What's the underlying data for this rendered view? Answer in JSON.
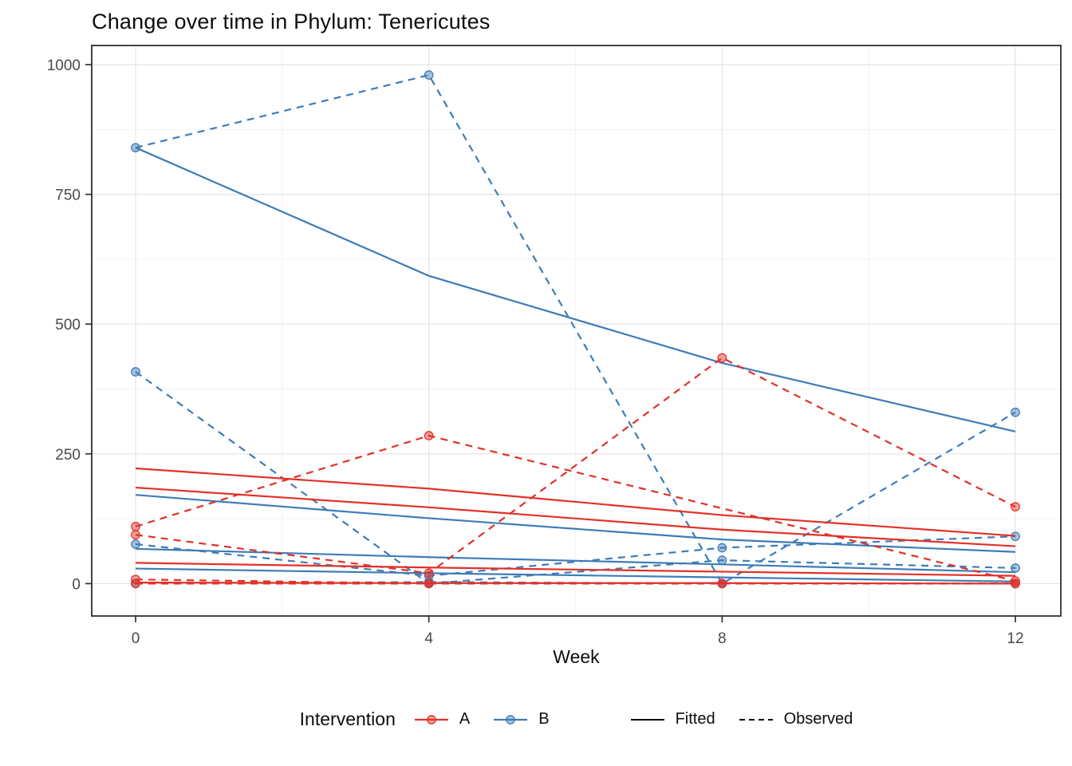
{
  "title": "Change over time in Phylum: Tenericutes",
  "colors": {
    "group_A": "#e23128",
    "group_B": "#3e7cb7",
    "legend_key_black": "#000000",
    "grid_major": "#e4e4e4",
    "grid_minor": "#f1f1f1",
    "panel_border": "#2f2f2f",
    "axis_text": "#4a4a4a",
    "tick_mark": "#333333"
  },
  "x_axis": {
    "label": "Week",
    "ticks": [
      0,
      4,
      8,
      12
    ],
    "minor_ticks": [
      2,
      6,
      10
    ]
  },
  "y_axis": {
    "ticks": [
      0,
      250,
      500,
      750,
      1000
    ],
    "minor_ticks": [
      125,
      375,
      625,
      875
    ]
  },
  "legend": {
    "title": "Intervention",
    "groups": [
      {
        "label": "A",
        "color": "#e23128"
      },
      {
        "label": "B",
        "color": "#3e7cb7"
      }
    ],
    "linetypes": [
      {
        "label": "Fitted",
        "style": "solid"
      },
      {
        "label": "Observed",
        "style": "dashed"
      }
    ]
  },
  "chart_data": {
    "type": "line",
    "title": "Change over time in Phylum: Tenericutes",
    "xlabel": "Week",
    "ylabel": "",
    "x_ticks": [
      0,
      4,
      8,
      12
    ],
    "ylim": [
      0,
      1000
    ],
    "grid": true,
    "legend_position": "bottom",
    "series": [
      {
        "id": "B1",
        "group": "B",
        "observed": [
          [
            0,
            840
          ],
          [
            4,
            980
          ],
          [
            8,
            0
          ],
          [
            12,
            330
          ]
        ],
        "fitted": [
          [
            0,
            840
          ],
          [
            4,
            593
          ],
          [
            8,
            425
          ],
          [
            12,
            293
          ]
        ]
      },
      {
        "id": "B2",
        "group": "B",
        "observed": [
          [
            0,
            408
          ],
          [
            4,
            0
          ],
          [
            8,
            45
          ],
          [
            12,
            30
          ]
        ],
        "fitted": [
          [
            0,
            171
          ],
          [
            4,
            126
          ],
          [
            8,
            85
          ],
          [
            12,
            61
          ]
        ]
      },
      {
        "id": "B3",
        "group": "B",
        "observed": [
          [
            0,
            76
          ],
          [
            4,
            15
          ],
          [
            8,
            69
          ],
          [
            12,
            91
          ]
        ],
        "fitted": [
          [
            0,
            67
          ],
          [
            4,
            51
          ],
          [
            8,
            37
          ],
          [
            12,
            22
          ]
        ]
      },
      {
        "id": "B4",
        "group": "B",
        "observed": [
          [
            0,
            0
          ],
          [
            4,
            3
          ],
          [
            8,
            0
          ],
          [
            12,
            0
          ]
        ],
        "fitted": [
          [
            0,
            29
          ],
          [
            4,
            20
          ],
          [
            8,
            12
          ],
          [
            12,
            4
          ]
        ]
      },
      {
        "id": "A1",
        "group": "A",
        "observed": [
          [
            0,
            110
          ],
          [
            4,
            285
          ],
          [
            12,
            5
          ]
        ],
        "fitted": [
          [
            0,
            222
          ],
          [
            4,
            183
          ],
          [
            8,
            132
          ],
          [
            12,
            92
          ]
        ]
      },
      {
        "id": "A2",
        "group": "A",
        "observed": [
          [
            0,
            94
          ],
          [
            4,
            20
          ],
          [
            8,
            435
          ],
          [
            12,
            148
          ]
        ],
        "fitted": [
          [
            0,
            185
          ],
          [
            4,
            147
          ],
          [
            8,
            104
          ],
          [
            12,
            72
          ]
        ]
      },
      {
        "id": "A3",
        "group": "A",
        "observed": [
          [
            0,
            8
          ],
          [
            4,
            0
          ],
          [
            8,
            0
          ],
          [
            12,
            0
          ]
        ],
        "fitted": [
          [
            0,
            40
          ],
          [
            4,
            31
          ],
          [
            8,
            23
          ],
          [
            12,
            15
          ]
        ]
      },
      {
        "id": "A4",
        "group": "A",
        "observed": [
          [
            0,
            0
          ],
          [
            4,
            0
          ],
          [
            8,
            0
          ],
          [
            12,
            0
          ]
        ],
        "fitted": [
          [
            0,
            2
          ],
          [
            4,
            1
          ],
          [
            8,
            1
          ],
          [
            12,
            0
          ]
        ]
      }
    ]
  }
}
